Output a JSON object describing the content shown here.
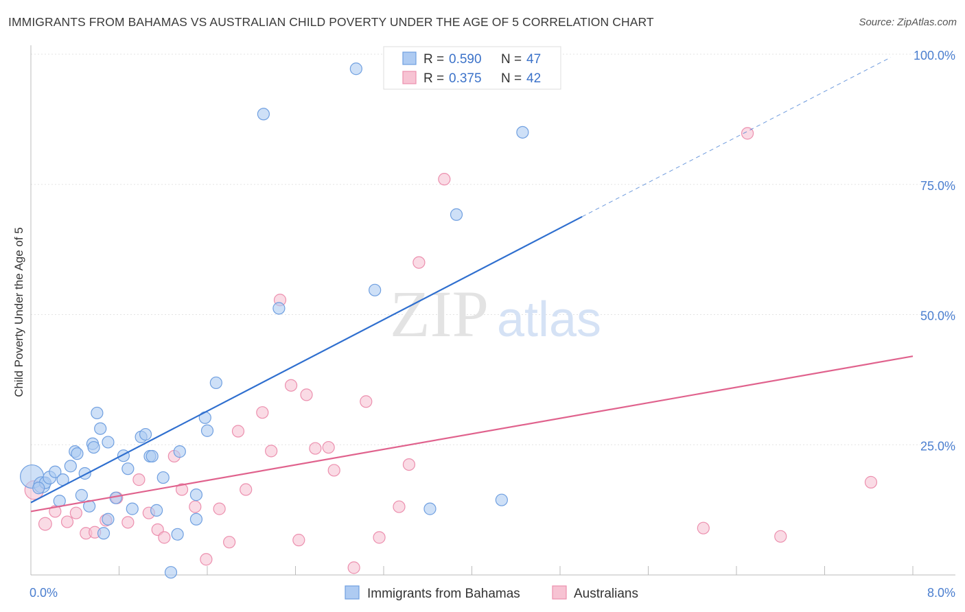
{
  "title": "IMMIGRANTS FROM BAHAMAS VS AUSTRALIAN CHILD POVERTY UNDER THE AGE OF 5 CORRELATION CHART",
  "source": "Source: ZipAtlas.com",
  "watermark": {
    "zip": "ZIP",
    "atlas": "atlas"
  },
  "colors": {
    "blue_fill": "#aecbf2",
    "blue_stroke": "#6f9fe0",
    "blue_line": "#2f6fcf",
    "pink_fill": "#f7c3d3",
    "pink_stroke": "#ec8fae",
    "pink_line": "#e0628d",
    "tick_text": "#4a7ecf",
    "grid": "#e3e3e3"
  },
  "legend": {
    "series1": {
      "r_label": "R = ",
      "r_value": "0.590",
      "n_label": "N = ",
      "n_value": "47"
    },
    "series2": {
      "r_label": "R = ",
      "r_value": "0.375",
      "n_label": "N = ",
      "n_value": "42"
    }
  },
  "chart_data": {
    "type": "scatter",
    "title": "IMMIGRANTS FROM BAHAMAS VS AUSTRALIAN CHILD POVERTY UNDER THE AGE OF 5 CORRELATION CHART",
    "xlabel": "",
    "ylabel": "Child Poverty Under the Age of 5",
    "xlim": [
      0,
      8
    ],
    "ylim": [
      0,
      100
    ],
    "x_tick_labels": [
      "0.0%",
      "8.0%"
    ],
    "y_ticks": [
      25,
      50,
      75,
      100
    ],
    "y_tick_labels": [
      "25.0%",
      "50.0%",
      "75.0%",
      "100.0%"
    ],
    "grid": true,
    "legend_position": "top-center",
    "series": [
      {
        "name": "Immigrants from Bahamas",
        "color": "#aecbf2",
        "trend": {
          "x": [
            0,
            5.0
          ],
          "y": [
            13.9,
            68.8
          ],
          "dashed_to": [
            7.8,
            99.4
          ]
        },
        "points": [
          [
            0.01,
            18.9,
            20
          ],
          [
            0.1,
            17.3,
            14
          ],
          [
            0.13,
            17.7,
            10
          ],
          [
            0.17,
            18.7,
            11
          ],
          [
            0.22,
            19.8,
            10
          ],
          [
            0.29,
            18.3,
            10
          ],
          [
            0.26,
            14.2,
            10
          ],
          [
            0.36,
            20.9,
            10
          ],
          [
            0.4,
            23.7,
            10
          ],
          [
            0.42,
            23.3,
            10
          ],
          [
            0.46,
            15.3,
            10
          ],
          [
            0.49,
            19.5,
            10
          ],
          [
            0.53,
            13.2,
            10
          ],
          [
            0.56,
            25.2,
            10
          ],
          [
            0.57,
            24.5,
            10
          ],
          [
            0.6,
            31.1,
            10
          ],
          [
            0.63,
            28.1,
            10
          ],
          [
            0.66,
            8.0,
            10
          ],
          [
            0.7,
            10.7,
            10
          ],
          [
            0.7,
            25.5,
            10
          ],
          [
            0.77,
            14.8,
            10
          ],
          [
            0.84,
            22.9,
            10
          ],
          [
            0.88,
            20.4,
            10
          ],
          [
            0.92,
            12.7,
            10
          ],
          [
            1.0,
            26.5,
            10
          ],
          [
            1.04,
            27.0,
            10
          ],
          [
            1.08,
            22.8,
            10
          ],
          [
            1.1,
            22.8,
            10
          ],
          [
            1.14,
            12.4,
            10
          ],
          [
            1.2,
            18.7,
            10
          ],
          [
            1.27,
            0.5,
            10
          ],
          [
            1.33,
            7.8,
            10
          ],
          [
            1.35,
            23.7,
            10
          ],
          [
            1.5,
            15.4,
            10
          ],
          [
            1.5,
            10.7,
            10
          ],
          [
            1.58,
            30.2,
            10
          ],
          [
            1.68,
            36.9,
            10
          ],
          [
            1.6,
            27.7,
            10
          ],
          [
            2.11,
            88.5,
            10
          ],
          [
            2.25,
            51.2,
            10
          ],
          [
            2.95,
            97.2,
            10
          ],
          [
            3.12,
            54.7,
            10
          ],
          [
            3.62,
            12.7,
            10
          ],
          [
            3.86,
            69.2,
            10
          ],
          [
            4.27,
            14.4,
            10
          ],
          [
            4.46,
            85.0,
            10
          ],
          [
            0.07,
            16.7,
            10
          ]
        ]
      },
      {
        "name": "Australians",
        "color": "#f7c3d3",
        "trend": {
          "x": [
            0,
            8.0
          ],
          "y": [
            12.2,
            42.0
          ]
        },
        "points": [
          [
            0.03,
            16.3,
            16
          ],
          [
            0.13,
            9.8,
            11
          ],
          [
            0.22,
            12.2,
            10
          ],
          [
            0.33,
            10.2,
            10
          ],
          [
            0.41,
            11.9,
            10
          ],
          [
            0.5,
            8.0,
            10
          ],
          [
            0.58,
            8.2,
            10
          ],
          [
            0.68,
            10.5,
            10
          ],
          [
            0.78,
            14.8,
            10
          ],
          [
            0.88,
            10.1,
            10
          ],
          [
            0.98,
            18.3,
            10
          ],
          [
            1.07,
            11.9,
            10
          ],
          [
            1.15,
            8.7,
            10
          ],
          [
            1.21,
            7.2,
            10
          ],
          [
            1.3,
            22.8,
            10
          ],
          [
            1.37,
            16.4,
            10
          ],
          [
            1.49,
            13.1,
            10
          ],
          [
            1.59,
            3.0,
            10
          ],
          [
            1.71,
            12.7,
            10
          ],
          [
            1.8,
            6.3,
            10
          ],
          [
            1.88,
            27.6,
            10
          ],
          [
            1.95,
            16.4,
            10
          ],
          [
            2.1,
            31.2,
            10
          ],
          [
            2.18,
            23.8,
            10
          ],
          [
            2.26,
            52.8,
            10
          ],
          [
            2.36,
            36.4,
            10
          ],
          [
            2.43,
            6.7,
            10
          ],
          [
            2.5,
            34.6,
            10
          ],
          [
            2.58,
            24.3,
            10
          ],
          [
            2.7,
            24.5,
            10
          ],
          [
            2.75,
            20.1,
            10
          ],
          [
            2.93,
            1.4,
            10
          ],
          [
            3.04,
            33.3,
            10
          ],
          [
            3.16,
            7.2,
            10
          ],
          [
            3.34,
            13.1,
            10
          ],
          [
            3.43,
            21.2,
            10
          ],
          [
            3.52,
            60.0,
            10
          ],
          [
            3.75,
            76.0,
            10
          ],
          [
            6.1,
            9.0,
            10
          ],
          [
            6.5,
            84.8,
            10
          ],
          [
            6.8,
            7.4,
            10
          ],
          [
            7.62,
            17.8,
            10
          ]
        ]
      }
    ]
  }
}
